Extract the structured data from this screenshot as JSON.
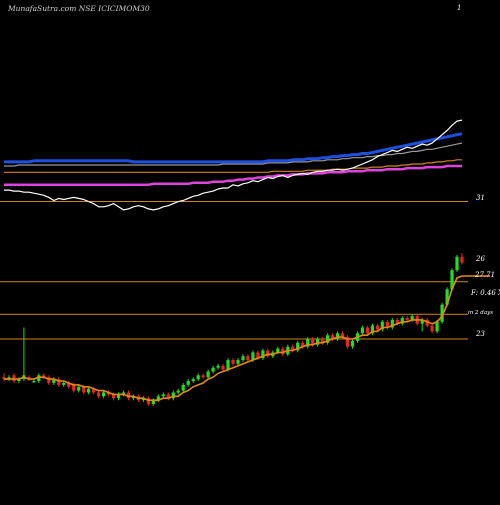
{
  "chart_data": [
    {
      "type": "line",
      "panel": "moving-averages",
      "title": "MunafaSutra.com NSE ICICIMOM30",
      "scale_label": "1",
      "level_label": "31",
      "colors": {
        "price": "#ffffff",
        "ma_fast": "#1f4fe0",
        "ma_mid": "#9a9a9a",
        "ma_slow": "#d2831e",
        "ma_long": "#dd44dd",
        "level_line": "#d2831e"
      },
      "x": [
        1,
        2,
        3,
        4,
        5,
        6,
        7,
        8,
        9,
        10,
        11,
        12,
        13,
        14,
        15,
        16,
        17,
        18,
        19,
        20,
        21,
        22,
        23,
        24,
        25,
        26,
        27,
        28,
        29,
        30,
        31,
        32,
        33,
        34,
        35,
        36,
        37,
        38,
        39,
        40,
        41,
        42,
        43,
        44,
        45,
        46,
        47,
        48,
        49,
        50,
        51,
        52,
        53,
        54,
        55,
        56,
        57,
        58,
        59,
        60,
        61,
        62,
        63,
        64,
        65,
        66,
        67,
        68,
        69,
        70,
        71,
        72,
        73,
        74,
        75,
        76,
        77,
        78,
        79,
        80,
        81,
        82,
        83,
        84,
        85,
        86,
        87,
        88,
        89,
        90,
        91,
        92,
        93
      ],
      "series": [
        {
          "key": "price",
          "values": [
            22.1,
            22.1,
            22.0,
            22.0,
            21.9,
            21.9,
            21.8,
            21.7,
            21.6,
            21.4,
            21.1,
            21.3,
            21.2,
            21.3,
            21.4,
            21.3,
            21.2,
            21.0,
            20.8,
            20.5,
            20.5,
            20.6,
            20.8,
            20.5,
            20.2,
            20.3,
            20.5,
            20.6,
            20.5,
            20.3,
            20.2,
            20.3,
            20.5,
            20.6,
            20.8,
            21.0,
            21.1,
            21.3,
            21.5,
            21.6,
            21.8,
            21.9,
            22.0,
            22.2,
            22.3,
            22.3,
            22.6,
            22.5,
            22.7,
            22.8,
            23.0,
            22.9,
            23.1,
            23.3,
            23.2,
            23.4,
            23.5,
            23.3,
            23.5,
            23.6,
            23.7,
            23.6,
            23.8,
            23.9,
            23.9,
            24.0,
            24.0,
            24.1,
            24.0,
            24.1,
            24.2,
            24.4,
            24.6,
            24.8,
            25.0,
            25.3,
            25.5,
            25.7,
            25.9,
            25.8,
            26.0,
            26.2,
            26.1,
            26.3,
            26.5,
            26.4,
            26.6,
            27.0,
            27.4,
            27.8,
            28.3,
            28.7,
            28.8
          ]
        },
        {
          "key": "ma_fast",
          "values": [
            24.8,
            24.8,
            24.8,
            24.8,
            24.8,
            24.8,
            24.9,
            24.9,
            24.9,
            24.9,
            24.9,
            24.9,
            24.9,
            24.9,
            24.9,
            24.9,
            24.9,
            24.9,
            24.9,
            24.9,
            24.9,
            24.9,
            24.9,
            24.9,
            24.9,
            24.9,
            24.8,
            24.8,
            24.8,
            24.8,
            24.8,
            24.8,
            24.8,
            24.8,
            24.8,
            24.8,
            24.8,
            24.8,
            24.8,
            24.8,
            24.8,
            24.8,
            24.8,
            24.8,
            24.8,
            24.8,
            24.8,
            24.8,
            24.8,
            24.8,
            24.8,
            24.8,
            24.8,
            24.9,
            24.9,
            24.9,
            24.9,
            24.9,
            25.0,
            25.0,
            25.0,
            25.1,
            25.1,
            25.1,
            25.2,
            25.2,
            25.3,
            25.3,
            25.4,
            25.4,
            25.5,
            25.5,
            25.6,
            25.6,
            25.7,
            25.8,
            25.9,
            26.0,
            26.1,
            26.2,
            26.3,
            26.4,
            26.5,
            26.6,
            26.7,
            26.8,
            26.9,
            27.0,
            27.1,
            27.2,
            27.3,
            27.4,
            27.5
          ]
        },
        {
          "key": "ma_mid",
          "values": [
            24.4,
            24.4,
            24.4,
            24.5,
            24.5,
            24.5,
            24.5,
            24.5,
            24.5,
            24.5,
            24.5,
            24.5,
            24.5,
            24.5,
            24.5,
            24.5,
            24.5,
            24.5,
            24.5,
            24.5,
            24.5,
            24.5,
            24.5,
            24.5,
            24.5,
            24.5,
            24.5,
            24.5,
            24.5,
            24.5,
            24.5,
            24.5,
            24.5,
            24.5,
            24.5,
            24.5,
            24.5,
            24.5,
            24.5,
            24.5,
            24.5,
            24.5,
            24.5,
            24.5,
            24.6,
            24.6,
            24.6,
            24.6,
            24.6,
            24.6,
            24.6,
            24.6,
            24.6,
            24.7,
            24.7,
            24.7,
            24.7,
            24.7,
            24.8,
            24.8,
            24.8,
            24.8,
            24.9,
            24.9,
            24.9,
            25.0,
            25.0,
            25.0,
            25.1,
            25.1,
            25.2,
            25.2,
            25.2,
            25.3,
            25.3,
            25.4,
            25.4,
            25.5,
            25.5,
            25.6,
            25.6,
            25.7,
            25.8,
            25.8,
            25.9,
            26.0,
            26.0,
            26.1,
            26.2,
            26.3,
            26.4,
            26.5,
            26.6
          ]
        },
        {
          "key": "ma_slow",
          "values": [
            23.8,
            23.8,
            23.8,
            23.8,
            23.8,
            23.8,
            23.8,
            23.8,
            23.8,
            23.8,
            23.8,
            23.8,
            23.8,
            23.8,
            23.8,
            23.8,
            23.8,
            23.8,
            23.8,
            23.8,
            23.8,
            23.8,
            23.8,
            23.8,
            23.8,
            23.8,
            23.8,
            23.8,
            23.8,
            23.8,
            23.8,
            23.8,
            23.8,
            23.8,
            23.8,
            23.8,
            23.8,
            23.8,
            23.8,
            23.8,
            23.8,
            23.8,
            23.8,
            23.8,
            23.8,
            23.8,
            23.8,
            23.8,
            23.8,
            23.8,
            23.8,
            23.8,
            23.8,
            23.8,
            23.9,
            23.9,
            23.9,
            23.9,
            23.9,
            23.9,
            23.9,
            24.0,
            24.0,
            24.0,
            24.0,
            24.0,
            24.1,
            24.1,
            24.1,
            24.1,
            24.2,
            24.2,
            24.2,
            24.2,
            24.3,
            24.3,
            24.3,
            24.4,
            24.4,
            24.4,
            24.5,
            24.5,
            24.6,
            24.6,
            24.6,
            24.7,
            24.7,
            24.8,
            24.8,
            24.9,
            24.9,
            25.0,
            25.0
          ]
        },
        {
          "key": "ma_long",
          "values": [
            22.6,
            22.6,
            22.6,
            22.6,
            22.6,
            22.6,
            22.6,
            22.6,
            22.6,
            22.6,
            22.6,
            22.6,
            22.6,
            22.6,
            22.6,
            22.6,
            22.6,
            22.6,
            22.6,
            22.6,
            22.6,
            22.6,
            22.6,
            22.6,
            22.6,
            22.6,
            22.6,
            22.6,
            22.6,
            22.6,
            22.7,
            22.7,
            22.7,
            22.7,
            22.7,
            22.7,
            22.7,
            22.7,
            22.8,
            22.8,
            22.8,
            22.8,
            22.9,
            22.9,
            22.9,
            23.0,
            23.0,
            23.1,
            23.1,
            23.2,
            23.2,
            23.3,
            23.3,
            23.4,
            23.4,
            23.5,
            23.5,
            23.5,
            23.6,
            23.6,
            23.6,
            23.7,
            23.7,
            23.7,
            23.7,
            23.8,
            23.8,
            23.8,
            23.8,
            23.9,
            23.9,
            23.9,
            23.9,
            24.0,
            24.0,
            24.0,
            24.0,
            24.1,
            24.1,
            24.1,
            24.1,
            24.2,
            24.2,
            24.2,
            24.2,
            24.3,
            24.3,
            24.3,
            24.3,
            24.4,
            24.4,
            24.4,
            24.4
          ]
        }
      ],
      "level": 21.0,
      "ylim": [
        20,
        29
      ]
    },
    {
      "type": "candlestick",
      "panel": "price",
      "colors": {
        "up": "#22dd22",
        "down": "#ee2222",
        "ema": "#e08a1e",
        "level_line": "#d2831e"
      },
      "price_labels": {
        "upper": "26",
        "current": "27.71",
        "stats": "F: 0.46  X",
        "note": "in 2 days",
        "lower": "23"
      },
      "levels": [
        26.0,
        24.3,
        23.0
      ],
      "x": [
        1,
        2,
        3,
        4,
        5,
        6,
        7,
        8,
        9,
        10,
        11,
        12,
        13,
        14,
        15,
        16,
        17,
        18,
        19,
        20,
        21,
        22,
        23,
        24,
        25,
        26,
        27,
        28,
        29,
        30,
        31,
        32,
        33,
        34,
        35,
        36,
        37,
        38,
        39,
        40,
        41,
        42,
        43,
        44,
        45,
        46,
        47,
        48,
        49,
        50,
        51,
        52,
        53,
        54,
        55,
        56,
        57,
        58,
        59,
        60,
        61,
        62,
        63,
        64,
        65,
        66,
        67,
        68,
        69,
        70,
        71,
        72,
        73,
        74,
        75,
        76,
        77,
        78,
        79,
        80,
        81,
        82,
        83,
        84,
        85,
        86,
        87,
        88,
        89,
        90,
        91,
        92,
        93
      ],
      "open": [
        21.0,
        20.9,
        21.1,
        20.8,
        20.9,
        21.0,
        20.8,
        20.8,
        21.1,
        21.0,
        20.7,
        20.9,
        20.6,
        20.7,
        20.6,
        20.3,
        20.5,
        20.2,
        20.4,
        20.2,
        20.0,
        20.2,
        20.1,
        19.9,
        20.1,
        20.2,
        19.9,
        20.0,
        19.8,
        19.9,
        19.6,
        19.8,
        20.0,
        20.1,
        19.9,
        20.2,
        20.3,
        20.6,
        20.8,
        20.9,
        21.1,
        21.0,
        21.3,
        21.5,
        21.6,
        21.4,
        21.9,
        21.7,
        21.9,
        22.1,
        21.9,
        22.3,
        22.0,
        22.4,
        22.1,
        22.3,
        22.5,
        22.2,
        22.6,
        22.4,
        22.8,
        22.6,
        23.0,
        22.7,
        23.0,
        22.8,
        23.2,
        23.0,
        23.3,
        23.1,
        22.6,
        22.9,
        23.3,
        23.6,
        23.3,
        23.7,
        23.5,
        23.9,
        23.6,
        24.0,
        23.8,
        24.1,
        24.0,
        24.2,
        23.8,
        24.0,
        23.7,
        23.4,
        23.9,
        24.8,
        25.6,
        26.6,
        27.3
      ],
      "close": [
        20.9,
        21.0,
        20.8,
        20.9,
        21.1,
        20.9,
        20.8,
        21.1,
        21.0,
        20.7,
        20.9,
        20.6,
        20.7,
        20.5,
        20.3,
        20.5,
        20.2,
        20.4,
        20.2,
        20.0,
        20.2,
        20.1,
        19.9,
        20.1,
        20.2,
        19.9,
        20.0,
        19.8,
        19.9,
        19.6,
        19.8,
        20.0,
        20.1,
        19.9,
        20.2,
        20.3,
        20.6,
        20.8,
        20.9,
        21.1,
        21.0,
        21.3,
        21.5,
        21.6,
        21.4,
        21.9,
        21.7,
        21.9,
        22.1,
        21.9,
        22.3,
        22.0,
        22.4,
        22.1,
        22.3,
        22.5,
        22.2,
        22.6,
        22.4,
        22.8,
        22.6,
        23.0,
        22.7,
        23.0,
        22.8,
        23.2,
        23.0,
        23.3,
        23.1,
        22.6,
        22.9,
        23.3,
        23.6,
        23.3,
        23.7,
        23.5,
        23.9,
        23.6,
        24.0,
        23.8,
        24.1,
        24.0,
        24.2,
        23.8,
        24.0,
        23.7,
        23.4,
        23.9,
        24.8,
        25.6,
        26.6,
        27.3,
        27.0
      ],
      "high": [
        21.2,
        21.1,
        21.2,
        21.0,
        23.6,
        21.1,
        20.9,
        21.2,
        21.2,
        21.1,
        21.0,
        21.0,
        20.8,
        20.8,
        20.7,
        20.6,
        20.6,
        20.5,
        20.5,
        20.3,
        20.3,
        20.3,
        20.2,
        20.2,
        20.3,
        20.3,
        20.1,
        20.1,
        20.0,
        20.0,
        19.9,
        20.1,
        20.2,
        20.2,
        20.3,
        20.4,
        20.7,
        20.9,
        21.0,
        21.2,
        21.2,
        21.4,
        21.6,
        21.7,
        21.7,
        22.0,
        22.0,
        22.0,
        22.2,
        22.2,
        22.4,
        22.4,
        22.5,
        22.5,
        22.4,
        22.6,
        22.6,
        22.7,
        22.7,
        22.9,
        22.9,
        23.1,
        23.1,
        23.1,
        23.1,
        23.3,
        23.3,
        23.4,
        23.4,
        23.2,
        23.0,
        23.4,
        23.7,
        23.7,
        23.8,
        23.8,
        24.0,
        24.0,
        24.1,
        24.1,
        24.2,
        24.2,
        24.3,
        24.3,
        24.1,
        24.1,
        23.8,
        24.0,
        24.9,
        25.7,
        26.7,
        27.4,
        27.5
      ],
      "low": [
        20.8,
        20.8,
        20.7,
        20.7,
        20.8,
        20.8,
        20.7,
        20.7,
        20.9,
        20.6,
        20.6,
        20.5,
        20.5,
        20.4,
        20.2,
        20.2,
        20.1,
        20.1,
        20.1,
        19.9,
        19.9,
        20.0,
        19.8,
        19.8,
        20.0,
        19.8,
        19.8,
        19.7,
        19.7,
        19.5,
        19.5,
        19.7,
        19.9,
        19.8,
        19.8,
        20.1,
        20.2,
        20.5,
        20.7,
        20.8,
        20.9,
        20.9,
        21.2,
        21.4,
        21.3,
        21.3,
        21.6,
        21.6,
        21.8,
        21.8,
        21.8,
        21.9,
        21.9,
        22.0,
        22.0,
        22.2,
        22.1,
        22.1,
        22.3,
        22.3,
        22.5,
        22.5,
        22.6,
        22.6,
        22.7,
        22.7,
        22.9,
        22.9,
        23.0,
        22.5,
        22.5,
        22.8,
        23.2,
        23.2,
        23.2,
        23.4,
        23.4,
        23.5,
        23.5,
        23.7,
        23.7,
        23.9,
        23.9,
        23.7,
        23.4,
        23.6,
        23.3,
        23.3,
        23.8,
        24.7,
        25.5,
        26.5,
        26.9
      ],
      "ema": [
        20.9,
        20.9,
        20.9,
        20.9,
        21.0,
        20.9,
        20.9,
        21.0,
        21.0,
        20.9,
        20.9,
        20.8,
        20.8,
        20.7,
        20.6,
        20.6,
        20.5,
        20.5,
        20.4,
        20.3,
        20.3,
        20.2,
        20.1,
        20.1,
        20.1,
        20.0,
        20.0,
        19.9,
        19.9,
        19.8,
        19.8,
        19.8,
        19.9,
        19.9,
        20.0,
        20.0,
        20.2,
        20.3,
        20.5,
        20.6,
        20.7,
        20.9,
        21.0,
        21.2,
        21.3,
        21.4,
        21.5,
        21.6,
        21.7,
        21.8,
        21.9,
        22.0,
        22.1,
        22.2,
        22.2,
        22.3,
        22.3,
        22.4,
        22.4,
        22.5,
        22.6,
        22.7,
        22.7,
        22.8,
        22.8,
        22.9,
        23.0,
        23.1,
        23.1,
        23.0,
        23.0,
        23.1,
        23.2,
        23.2,
        23.4,
        23.4,
        23.6,
        23.6,
        23.7,
        23.8,
        23.9,
        23.9,
        24.0,
        24.0,
        24.0,
        23.9,
        23.8,
        23.9,
        24.2,
        24.8,
        25.6,
        26.2,
        26.3
      ],
      "ylim": [
        18.5,
        28.6
      ]
    }
  ]
}
